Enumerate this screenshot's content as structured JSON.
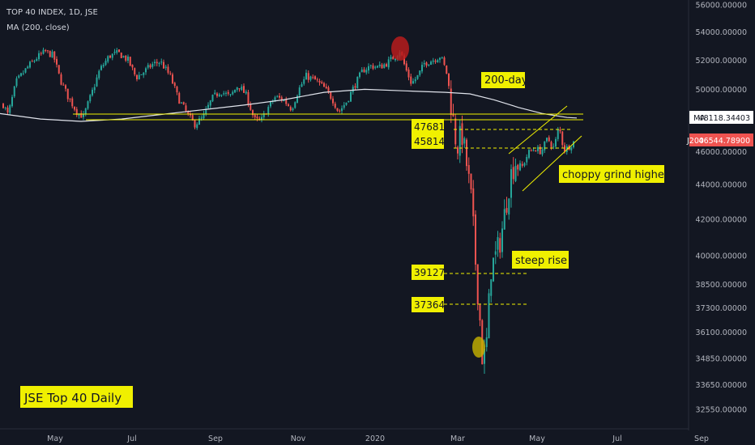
{
  "header": {
    "symbol_line": "TOP 40 INDEX, 1D, JSE",
    "indicator_line": "MA (200, close)"
  },
  "colors": {
    "background": "#131722",
    "up_candle": "#26a69a",
    "down_candle": "#ef5350",
    "moving_average": "#e0e3eb",
    "annotation_fill": "#f0f000",
    "annotation_text": "#131722",
    "level_line": "#f0f000",
    "axis_text": "#b2b5be",
    "peak_marker": "#b71c1c",
    "low_marker": "#c8b400",
    "ma_tag": "#ffffff",
    "price_tag": "#ef5350"
  },
  "chart_data": {
    "type": "candlestick",
    "title": "JSE Top 40 Daily",
    "x_axis": {
      "ticks": [
        "May",
        "Jul",
        "Sep",
        "Nov",
        "2020",
        "Mar",
        "May",
        "Jul",
        "Sep"
      ]
    },
    "y_axis": {
      "ticks": [
        "56000.00000",
        "54000.00000",
        "52000.00000",
        "50000.00000",
        "48000.00000",
        "46000.00000",
        "44000.00000",
        "42000.00000",
        "40000.00000",
        "38500.00000",
        "37300.00000",
        "36100.00000",
        "34850.00000",
        "33650.00000",
        "32550.00000"
      ],
      "scale": "log"
    },
    "price_labels": {
      "ma": {
        "label": "MA",
        "value": "48118.34403"
      },
      "last": {
        "label": "J200",
        "value": "46544.78900"
      }
    },
    "series": [
      {
        "name": "J200",
        "type": "candlestick"
      },
      {
        "name": "MA (200, close)",
        "type": "line"
      }
    ],
    "levels": [
      {
        "label": "47681",
        "value": 47681
      },
      {
        "label": "45814",
        "value": 45814
      },
      {
        "label": "39127",
        "value": 39127
      },
      {
        "label": "37364",
        "value": 37364
      }
    ],
    "annotations": [
      {
        "text": "200-day"
      },
      {
        "text": "choppy grind higher"
      },
      {
        "text": "steep rise"
      }
    ],
    "markers": [
      {
        "kind": "peak",
        "month": "Jan 2020",
        "value": 52800
      },
      {
        "kind": "low",
        "month": "Mar 2020",
        "value": 35200
      }
    ]
  }
}
